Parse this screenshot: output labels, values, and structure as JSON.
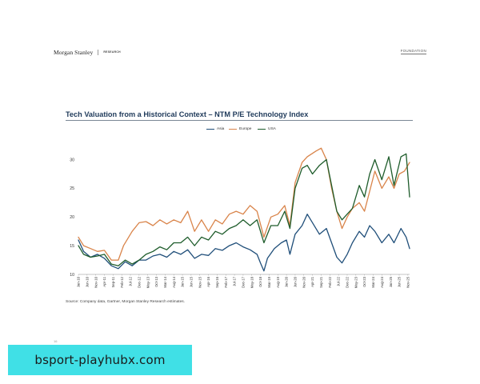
{
  "header": {
    "brand": "Morgan Stanley",
    "brand_sub": "RESEARCH",
    "section": "FOUNDATION"
  },
  "footer": {
    "source": "Source: Company data, Gartner, Morgan Stanley Research estimates.",
    "page": "16"
  },
  "overlay": {
    "url_text": "bsport-playhubx.com",
    "color": "#40e0e6"
  },
  "chart_data": {
    "type": "line",
    "title": "Tech Valuation from a Historical Context – NTM P/E Technology Index",
    "xlabel": "",
    "ylabel": "",
    "ylim": [
      10,
      33
    ],
    "yticks": [
      10,
      15,
      20,
      25,
      30
    ],
    "grid": false,
    "legend_position": "top-center",
    "x_start": "2010-01",
    "x_end": "2025-12",
    "xtick_labels": [
      "Jan-10",
      "Jun-10",
      "Nov-10",
      "Apr-11",
      "Sep-11",
      "Feb-12",
      "Jul-12",
      "Dec-12",
      "May-13",
      "Oct-13",
      "Mar-14",
      "Aug-14",
      "Jan-15",
      "Jun-15",
      "Nov-15",
      "Apr-16",
      "Sep-16",
      "Feb-17",
      "Jul-17",
      "Dec-17",
      "May-18",
      "Oct-18",
      "Mar-19",
      "Aug-19",
      "Jan-20",
      "Jun-20",
      "Nov-20",
      "Apr-21",
      "Sep-21",
      "Feb-22",
      "Jul-22",
      "Dec-22",
      "May-23",
      "Oct-23",
      "Mar-24",
      "Aug-24",
      "Jan-25",
      "Jun-25",
      "Nov-25"
    ],
    "series": [
      {
        "name": "Asia",
        "color": "#1f4e79",
        "points": [
          [
            "2010-01",
            16.0
          ],
          [
            "2010-04",
            14.0
          ],
          [
            "2010-08",
            13.0
          ],
          [
            "2010-12",
            13.5
          ],
          [
            "2011-04",
            12.8
          ],
          [
            "2011-08",
            11.5
          ],
          [
            "2011-12",
            11.0
          ],
          [
            "2012-04",
            12.2
          ],
          [
            "2012-08",
            11.5
          ],
          [
            "2012-12",
            12.5
          ],
          [
            "2013-04",
            12.5
          ],
          [
            "2013-08",
            13.2
          ],
          [
            "2013-12",
            13.5
          ],
          [
            "2014-04",
            13.0
          ],
          [
            "2014-08",
            14.0
          ],
          [
            "2014-12",
            13.5
          ],
          [
            "2015-04",
            14.3
          ],
          [
            "2015-08",
            12.8
          ],
          [
            "2015-12",
            13.5
          ],
          [
            "2016-04",
            13.3
          ],
          [
            "2016-08",
            14.5
          ],
          [
            "2016-12",
            14.2
          ],
          [
            "2017-04",
            15.0
          ],
          [
            "2017-08",
            15.5
          ],
          [
            "2017-12",
            14.8
          ],
          [
            "2018-04",
            14.3
          ],
          [
            "2018-08",
            13.5
          ],
          [
            "2018-10",
            12.0
          ],
          [
            "2018-12",
            10.6
          ],
          [
            "2019-02",
            12.8
          ],
          [
            "2019-06",
            14.5
          ],
          [
            "2019-10",
            15.5
          ],
          [
            "2020-01",
            16.0
          ],
          [
            "2020-03",
            13.5
          ],
          [
            "2020-06",
            17.0
          ],
          [
            "2020-10",
            18.5
          ],
          [
            "2021-01",
            20.5
          ],
          [
            "2021-04",
            19.0
          ],
          [
            "2021-08",
            17.0
          ],
          [
            "2021-12",
            18.0
          ],
          [
            "2022-03",
            15.5
          ],
          [
            "2022-06",
            13.0
          ],
          [
            "2022-09",
            12.0
          ],
          [
            "2022-12",
            13.5
          ],
          [
            "2023-03",
            15.5
          ],
          [
            "2023-07",
            17.5
          ],
          [
            "2023-10",
            16.5
          ],
          [
            "2024-01",
            18.5
          ],
          [
            "2024-04",
            17.5
          ],
          [
            "2024-08",
            15.5
          ],
          [
            "2024-12",
            17.0
          ],
          [
            "2025-03",
            15.5
          ],
          [
            "2025-07",
            18.0
          ],
          [
            "2025-10",
            16.5
          ],
          [
            "2025-12",
            14.5
          ]
        ]
      },
      {
        "name": "Europe",
        "color": "#d9844a",
        "points": [
          [
            "2010-01",
            16.5
          ],
          [
            "2010-04",
            15.0
          ],
          [
            "2010-08",
            14.5
          ],
          [
            "2010-12",
            14.0
          ],
          [
            "2011-04",
            14.2
          ],
          [
            "2011-08",
            12.5
          ],
          [
            "2011-12",
            12.5
          ],
          [
            "2012-03",
            15.0
          ],
          [
            "2012-08",
            17.5
          ],
          [
            "2012-12",
            19.0
          ],
          [
            "2013-04",
            19.2
          ],
          [
            "2013-08",
            18.5
          ],
          [
            "2013-12",
            19.5
          ],
          [
            "2014-04",
            18.8
          ],
          [
            "2014-08",
            19.5
          ],
          [
            "2014-12",
            19.0
          ],
          [
            "2015-04",
            21.0
          ],
          [
            "2015-08",
            17.5
          ],
          [
            "2015-12",
            19.5
          ],
          [
            "2016-04",
            17.5
          ],
          [
            "2016-08",
            19.5
          ],
          [
            "2016-12",
            18.8
          ],
          [
            "2017-04",
            20.5
          ],
          [
            "2017-08",
            21.0
          ],
          [
            "2017-12",
            20.5
          ],
          [
            "2018-04",
            22.0
          ],
          [
            "2018-08",
            21.0
          ],
          [
            "2018-12",
            16.5
          ],
          [
            "2019-04",
            20.0
          ],
          [
            "2019-08",
            20.5
          ],
          [
            "2019-12",
            22.0
          ],
          [
            "2020-03",
            18.5
          ],
          [
            "2020-06",
            26.0
          ],
          [
            "2020-10",
            29.5
          ],
          [
            "2021-01",
            30.5
          ],
          [
            "2021-06",
            31.5
          ],
          [
            "2021-09",
            32.0
          ],
          [
            "2021-12",
            30.0
          ],
          [
            "2022-03",
            25.0
          ],
          [
            "2022-06",
            21.0
          ],
          [
            "2022-09",
            18.0
          ],
          [
            "2022-12",
            20.0
          ],
          [
            "2023-03",
            21.5
          ],
          [
            "2023-07",
            22.5
          ],
          [
            "2023-10",
            21.0
          ],
          [
            "2024-01",
            24.5
          ],
          [
            "2024-04",
            28.0
          ],
          [
            "2024-08",
            25.0
          ],
          [
            "2024-12",
            27.0
          ],
          [
            "2025-03",
            25.0
          ],
          [
            "2025-06",
            27.5
          ],
          [
            "2025-09",
            28.0
          ],
          [
            "2025-12",
            29.5
          ]
        ]
      },
      {
        "name": "USA",
        "color": "#1e5c2b",
        "points": [
          [
            "2010-01",
            15.0
          ],
          [
            "2010-04",
            13.5
          ],
          [
            "2010-08",
            13.0
          ],
          [
            "2010-12",
            13.2
          ],
          [
            "2011-04",
            13.5
          ],
          [
            "2011-08",
            11.8
          ],
          [
            "2011-12",
            11.5
          ],
          [
            "2012-04",
            12.5
          ],
          [
            "2012-08",
            11.8
          ],
          [
            "2012-12",
            12.5
          ],
          [
            "2013-04",
            13.5
          ],
          [
            "2013-08",
            14.0
          ],
          [
            "2013-12",
            14.8
          ],
          [
            "2014-04",
            14.3
          ],
          [
            "2014-08",
            15.5
          ],
          [
            "2014-12",
            15.5
          ],
          [
            "2015-04",
            16.5
          ],
          [
            "2015-08",
            15.0
          ],
          [
            "2015-12",
            16.5
          ],
          [
            "2016-04",
            16.0
          ],
          [
            "2016-08",
            17.5
          ],
          [
            "2016-12",
            17.0
          ],
          [
            "2017-04",
            18.0
          ],
          [
            "2017-08",
            18.5
          ],
          [
            "2017-12",
            19.5
          ],
          [
            "2018-04",
            18.5
          ],
          [
            "2018-08",
            19.5
          ],
          [
            "2018-12",
            15.5
          ],
          [
            "2019-04",
            18.5
          ],
          [
            "2019-08",
            18.5
          ],
          [
            "2019-12",
            21.0
          ],
          [
            "2020-03",
            18.0
          ],
          [
            "2020-06",
            25.0
          ],
          [
            "2020-10",
            28.5
          ],
          [
            "2021-01",
            29.0
          ],
          [
            "2021-04",
            27.5
          ],
          [
            "2021-08",
            29.0
          ],
          [
            "2021-12",
            30.0
          ],
          [
            "2022-03",
            25.5
          ],
          [
            "2022-06",
            21.0
          ],
          [
            "2022-09",
            19.5
          ],
          [
            "2022-12",
            20.5
          ],
          [
            "2023-03",
            21.5
          ],
          [
            "2023-07",
            25.5
          ],
          [
            "2023-10",
            23.5
          ],
          [
            "2024-01",
            27.5
          ],
          [
            "2024-04",
            30.0
          ],
          [
            "2024-08",
            26.5
          ],
          [
            "2024-12",
            30.5
          ],
          [
            "2025-03",
            25.5
          ],
          [
            "2025-07",
            30.5
          ],
          [
            "2025-10",
            31.0
          ],
          [
            "2025-12",
            23.5
          ]
        ]
      }
    ]
  }
}
